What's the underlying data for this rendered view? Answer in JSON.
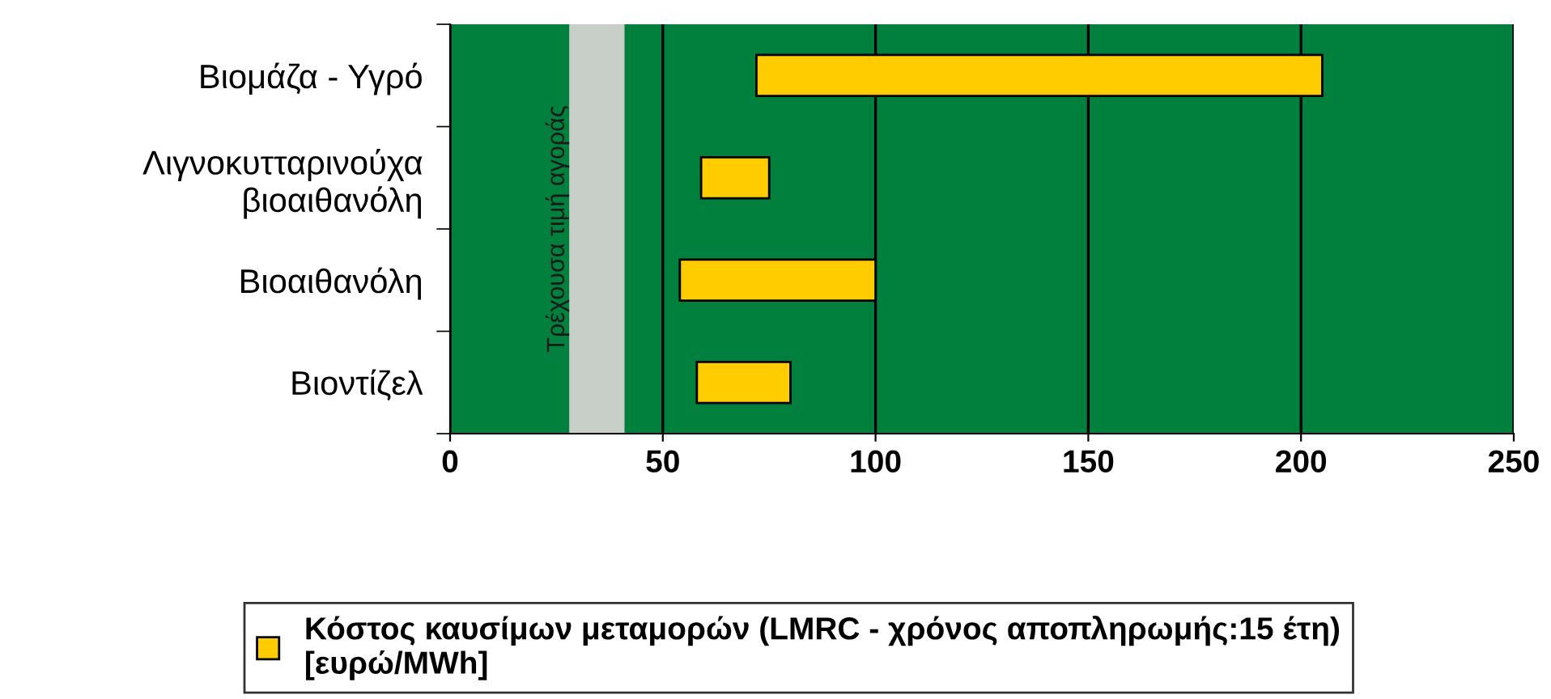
{
  "chart_data": {
    "type": "bar",
    "orientation": "horizontal",
    "categories": [
      "Βιομάζα - Υγρό",
      "Λιγνοκυτταρινούχα\nβιοαιθανόλη",
      "Βιοαιθανόλη",
      "Βιοντίζελ"
    ],
    "series": [
      {
        "name": "Κόστος καυσίμων μεταμορών (LMRC - χρόνος αποπληρωμής:15 έτη)\n[ευρώ/MWh]",
        "color": "#ffcc00",
        "values": [
          133,
          16,
          46,
          22
        ],
        "base": [
          72,
          59,
          54,
          58
        ]
      }
    ],
    "xlim": [
      0,
      250
    ],
    "xticks": [
      0,
      50,
      100,
      150,
      200,
      250
    ],
    "grid": "x",
    "legend": "bottom",
    "bands": [
      {
        "axis": "x",
        "from": 28,
        "to": 41,
        "label": "Τρέχουσα τιμή αγοράς",
        "color": "#c8cfc8"
      }
    ]
  }
}
